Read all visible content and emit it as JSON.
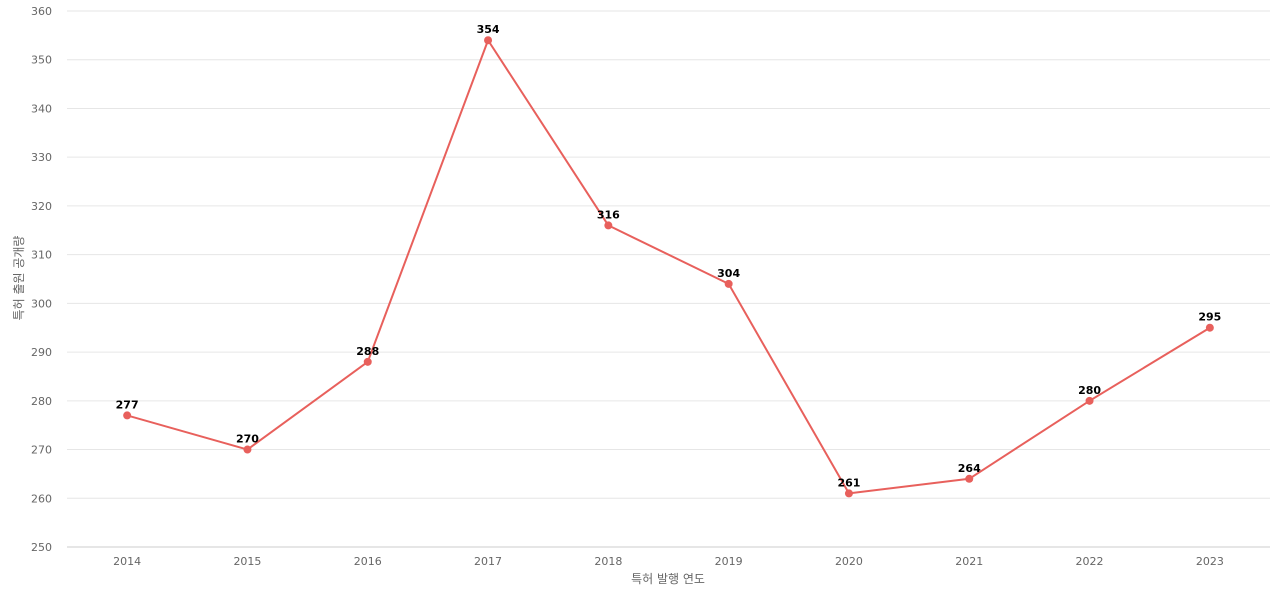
{
  "chart_data": {
    "type": "line",
    "title": "",
    "xlabel": "특허 발행 연도",
    "ylabel": "특허 출원 공개량",
    "ylim": [
      250,
      360
    ],
    "yticks": [
      250,
      260,
      270,
      280,
      290,
      300,
      310,
      320,
      330,
      340,
      350,
      360
    ],
    "grid": true,
    "legend": "none",
    "categories": [
      "2014",
      "2015",
      "2016",
      "2017",
      "2018",
      "2019",
      "2020",
      "2021",
      "2022",
      "2023"
    ],
    "series": [
      {
        "values": [
          277,
          270,
          288,
          354,
          316,
          304,
          261,
          264,
          280,
          295
        ],
        "color": "#e8605c"
      }
    ],
    "data_labels": true
  }
}
